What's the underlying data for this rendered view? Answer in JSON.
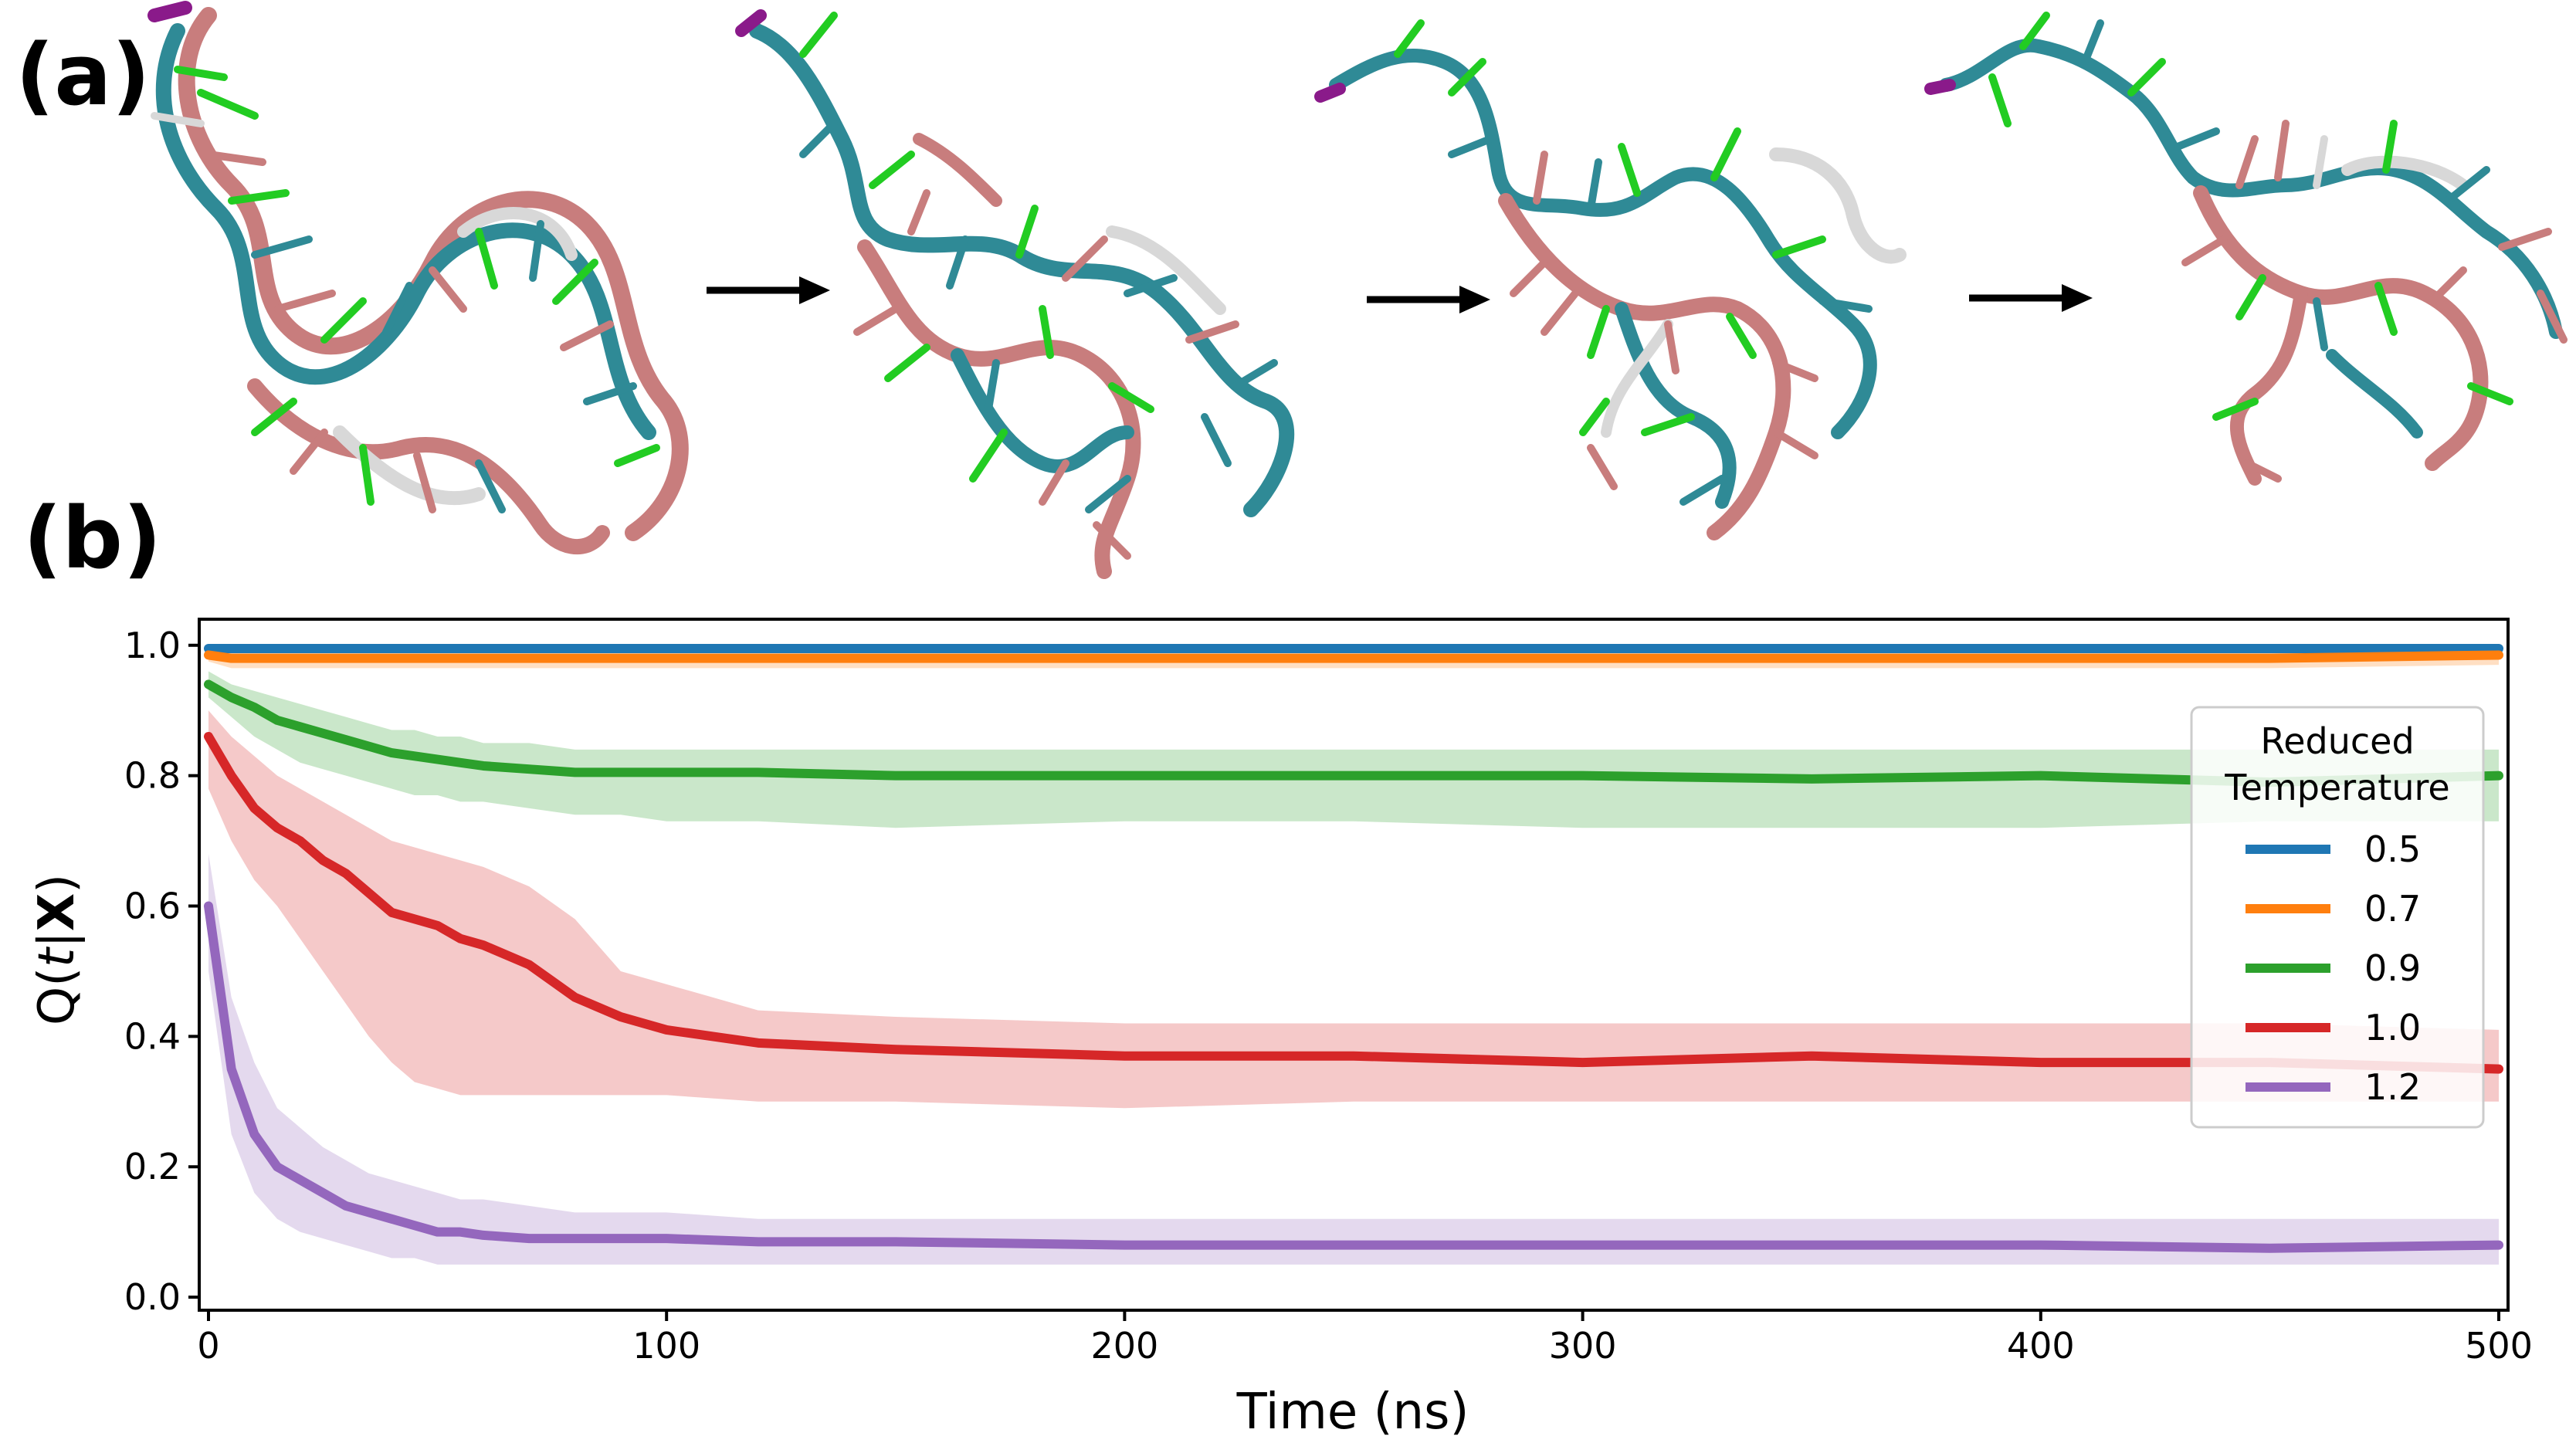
{
  "panels": {
    "a_label": "(a)",
    "b_label": "(b)"
  },
  "structures": {
    "count": 4,
    "colors": {
      "salmon": "#c87d7d",
      "teal": "#2f8a96",
      "green": "#22cc22",
      "white": "#d8d8d8",
      "magenta": "#8a1a8a",
      "arrow": "#000000"
    }
  },
  "chart_data": {
    "type": "line",
    "xlabel": "Time (ns)",
    "ylabel_parts": {
      "q": "Q(",
      "t": "t",
      "bar": "|",
      "x": "X",
      "close": ")"
    },
    "xlim": [
      0,
      500
    ],
    "ylim": [
      0.0,
      1.0
    ],
    "xticks": [
      0,
      100,
      200,
      300,
      400,
      500
    ],
    "yticks": [
      0.0,
      0.2,
      0.4,
      0.6,
      0.8,
      1.0
    ],
    "xtick_labels": [
      "0",
      "100",
      "200",
      "300",
      "400",
      "500"
    ],
    "ytick_labels": [
      "0.0",
      "0.2",
      "0.4",
      "0.6",
      "0.8",
      "1.0"
    ],
    "grid": false,
    "legend": {
      "title_line1": "Reduced",
      "title_line2": "Temperature",
      "placement": "right"
    },
    "x": [
      0,
      5,
      10,
      15,
      20,
      25,
      30,
      35,
      40,
      45,
      50,
      55,
      60,
      70,
      80,
      90,
      100,
      120,
      150,
      200,
      250,
      300,
      350,
      400,
      450,
      500
    ],
    "series": [
      {
        "name": "0.5",
        "color": "#1f77b4",
        "values": [
          0.995,
          0.995,
          0.995,
          0.995,
          0.995,
          0.995,
          0.995,
          0.995,
          0.995,
          0.995,
          0.995,
          0.995,
          0.995,
          0.995,
          0.995,
          0.995,
          0.995,
          0.995,
          0.995,
          0.995,
          0.995,
          0.995,
          0.995,
          0.995,
          0.995,
          0.995
        ],
        "lower": [
          0.99,
          0.99,
          0.99,
          0.99,
          0.99,
          0.99,
          0.99,
          0.99,
          0.99,
          0.99,
          0.99,
          0.99,
          0.99,
          0.99,
          0.99,
          0.99,
          0.99,
          0.99,
          0.99,
          0.99,
          0.99,
          0.99,
          0.99,
          0.99,
          0.99,
          0.99
        ],
        "upper": [
          1.0,
          1.0,
          1.0,
          1.0,
          1.0,
          1.0,
          1.0,
          1.0,
          1.0,
          1.0,
          1.0,
          1.0,
          1.0,
          1.0,
          1.0,
          1.0,
          1.0,
          1.0,
          1.0,
          1.0,
          1.0,
          1.0,
          1.0,
          1.0,
          1.0,
          1.0
        ]
      },
      {
        "name": "0.7",
        "color": "#ff7f0e",
        "values": [
          0.985,
          0.98,
          0.98,
          0.98,
          0.98,
          0.98,
          0.98,
          0.98,
          0.98,
          0.98,
          0.98,
          0.98,
          0.98,
          0.98,
          0.98,
          0.98,
          0.98,
          0.98,
          0.98,
          0.98,
          0.98,
          0.98,
          0.98,
          0.98,
          0.98,
          0.985
        ],
        "lower": [
          0.975,
          0.965,
          0.965,
          0.965,
          0.965,
          0.965,
          0.965,
          0.965,
          0.965,
          0.965,
          0.965,
          0.965,
          0.965,
          0.965,
          0.965,
          0.965,
          0.965,
          0.965,
          0.965,
          0.965,
          0.965,
          0.965,
          0.965,
          0.965,
          0.965,
          0.97
        ],
        "upper": [
          0.99,
          0.99,
          0.99,
          0.99,
          0.99,
          0.99,
          0.99,
          0.99,
          0.99,
          0.99,
          0.99,
          0.99,
          0.99,
          0.99,
          0.99,
          0.99,
          0.99,
          0.99,
          0.99,
          0.99,
          0.99,
          0.99,
          0.99,
          0.99,
          0.99,
          0.99
        ]
      },
      {
        "name": "0.9",
        "color": "#2ca02c",
        "values": [
          0.94,
          0.92,
          0.905,
          0.885,
          0.875,
          0.865,
          0.855,
          0.845,
          0.835,
          0.83,
          0.825,
          0.82,
          0.815,
          0.81,
          0.805,
          0.805,
          0.805,
          0.805,
          0.8,
          0.8,
          0.8,
          0.8,
          0.795,
          0.8,
          0.79,
          0.8
        ],
        "lower": [
          0.92,
          0.89,
          0.86,
          0.84,
          0.82,
          0.81,
          0.8,
          0.79,
          0.78,
          0.77,
          0.77,
          0.76,
          0.76,
          0.75,
          0.74,
          0.74,
          0.73,
          0.73,
          0.72,
          0.73,
          0.73,
          0.72,
          0.72,
          0.72,
          0.73,
          0.73
        ],
        "upper": [
          0.96,
          0.94,
          0.93,
          0.92,
          0.91,
          0.9,
          0.89,
          0.88,
          0.87,
          0.87,
          0.86,
          0.86,
          0.85,
          0.85,
          0.84,
          0.84,
          0.84,
          0.84,
          0.84,
          0.84,
          0.84,
          0.84,
          0.84,
          0.84,
          0.84,
          0.84
        ]
      },
      {
        "name": "1.0",
        "color": "#d62728",
        "values": [
          0.86,
          0.8,
          0.75,
          0.72,
          0.7,
          0.67,
          0.65,
          0.62,
          0.59,
          0.58,
          0.57,
          0.55,
          0.54,
          0.51,
          0.46,
          0.43,
          0.41,
          0.39,
          0.38,
          0.37,
          0.37,
          0.36,
          0.37,
          0.36,
          0.36,
          0.35
        ],
        "lower": [
          0.78,
          0.7,
          0.64,
          0.6,
          0.55,
          0.5,
          0.45,
          0.4,
          0.36,
          0.33,
          0.32,
          0.31,
          0.31,
          0.31,
          0.31,
          0.31,
          0.31,
          0.3,
          0.3,
          0.29,
          0.3,
          0.3,
          0.3,
          0.3,
          0.3,
          0.3
        ],
        "upper": [
          0.9,
          0.86,
          0.83,
          0.8,
          0.78,
          0.76,
          0.74,
          0.72,
          0.7,
          0.69,
          0.68,
          0.67,
          0.66,
          0.63,
          0.58,
          0.5,
          0.48,
          0.44,
          0.43,
          0.42,
          0.42,
          0.42,
          0.42,
          0.42,
          0.42,
          0.41
        ]
      },
      {
        "name": "1.2",
        "color": "#9467bd",
        "values": [
          0.6,
          0.35,
          0.25,
          0.2,
          0.18,
          0.16,
          0.14,
          0.13,
          0.12,
          0.11,
          0.1,
          0.1,
          0.095,
          0.09,
          0.09,
          0.09,
          0.09,
          0.085,
          0.085,
          0.08,
          0.08,
          0.08,
          0.08,
          0.08,
          0.075,
          0.08
        ],
        "lower": [
          0.5,
          0.25,
          0.16,
          0.12,
          0.1,
          0.09,
          0.08,
          0.07,
          0.06,
          0.06,
          0.05,
          0.05,
          0.05,
          0.05,
          0.05,
          0.05,
          0.05,
          0.05,
          0.05,
          0.05,
          0.05,
          0.05,
          0.05,
          0.05,
          0.05,
          0.05
        ],
        "upper": [
          0.68,
          0.46,
          0.36,
          0.29,
          0.26,
          0.23,
          0.21,
          0.19,
          0.18,
          0.17,
          0.16,
          0.15,
          0.15,
          0.14,
          0.13,
          0.13,
          0.13,
          0.12,
          0.12,
          0.12,
          0.12,
          0.12,
          0.12,
          0.12,
          0.12,
          0.12
        ]
      }
    ]
  }
}
